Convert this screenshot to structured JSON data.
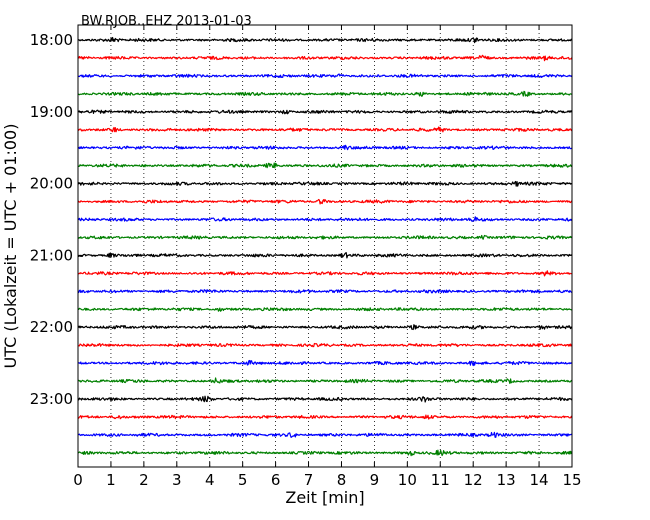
{
  "chart_data": {
    "type": "line",
    "plot_kind": "dayplot",
    "title": "BW.RJOB..EHZ 2013-01-03",
    "xlabel": "Zeit  [min]",
    "ylabel": "UTC (Lokalzeit = UTC + 01:00)",
    "xlim": [
      0,
      15
    ],
    "xticks": [
      "0",
      "1",
      "2",
      "3",
      "4",
      "5",
      "6",
      "7",
      "8",
      "9",
      "10",
      "11",
      "12",
      "13",
      "14",
      "15"
    ],
    "yticks": [
      "18:00",
      "19:00",
      "20:00",
      "21:00",
      "22:00",
      "23:00"
    ],
    "ytick_rows": [
      0,
      4,
      8,
      12,
      16,
      20
    ],
    "rows": 24,
    "row_interval_minutes": 15,
    "row_colors": [
      "#000000",
      "#ff0000",
      "#0000ff",
      "#008000"
    ],
    "grid": {
      "x": "dotted",
      "y": "none"
    },
    "trace_events": [
      {
        "row": 0,
        "minute": 1.1,
        "amp": 0.5
      },
      {
        "row": 0,
        "minute": 12.1,
        "amp": 0.6
      },
      {
        "row": 1,
        "minute": 12.3,
        "amp": 0.55
      },
      {
        "row": 1,
        "minute": 14.2,
        "amp": 0.45
      },
      {
        "row": 2,
        "minute": 7.9,
        "amp": 0.35
      },
      {
        "row": 3,
        "minute": 10.4,
        "amp": 0.45
      },
      {
        "row": 3,
        "minute": 13.6,
        "amp": 0.4
      },
      {
        "row": 4,
        "minute": 6.3,
        "amp": 0.4
      },
      {
        "row": 5,
        "minute": 1.1,
        "amp": 0.45
      },
      {
        "row": 5,
        "minute": 11.0,
        "amp": 0.4
      },
      {
        "row": 6,
        "minute": 8.1,
        "amp": 0.4
      },
      {
        "row": 7,
        "minute": 5.8,
        "amp": 0.45
      },
      {
        "row": 7,
        "minute": 6.0,
        "amp": 0.4
      },
      {
        "row": 8,
        "minute": 13.3,
        "amp": 0.45
      },
      {
        "row": 9,
        "minute": 7.4,
        "amp": 0.6
      },
      {
        "row": 10,
        "minute": 12.0,
        "amp": 0.45
      },
      {
        "row": 11,
        "minute": 12.3,
        "amp": 0.35
      },
      {
        "row": 12,
        "minute": 1.0,
        "amp": 0.4
      },
      {
        "row": 12,
        "minute": 8.1,
        "amp": 0.45
      },
      {
        "row": 13,
        "minute": 14.2,
        "amp": 0.4
      },
      {
        "row": 15,
        "minute": 4.3,
        "amp": 0.35
      },
      {
        "row": 16,
        "minute": 10.2,
        "amp": 0.45
      },
      {
        "row": 16,
        "minute": 14.1,
        "amp": 0.4
      },
      {
        "row": 18,
        "minute": 5.2,
        "amp": 0.35
      },
      {
        "row": 18,
        "minute": 12.0,
        "amp": 0.35
      },
      {
        "row": 19,
        "minute": 4.2,
        "amp": 0.45
      },
      {
        "row": 19,
        "minute": 13.1,
        "amp": 0.4
      },
      {
        "row": 20,
        "minute": 3.9,
        "amp": 0.5
      },
      {
        "row": 20,
        "minute": 10.5,
        "amp": 0.4
      },
      {
        "row": 21,
        "minute": 1.2,
        "amp": 0.45
      },
      {
        "row": 21,
        "minute": 10.6,
        "amp": 0.4
      },
      {
        "row": 22,
        "minute": 6.5,
        "amp": 0.5
      },
      {
        "row": 22,
        "minute": 12.6,
        "amp": 0.55
      },
      {
        "row": 23,
        "minute": 10.1,
        "amp": 0.45
      },
      {
        "row": 23,
        "minute": 11.0,
        "amp": 0.4
      }
    ]
  }
}
